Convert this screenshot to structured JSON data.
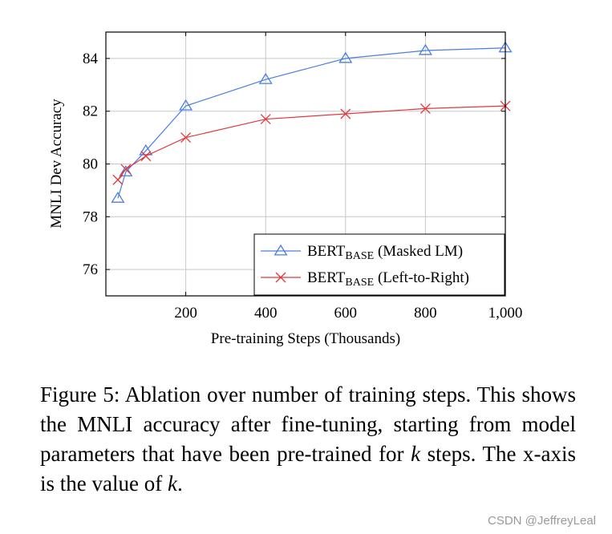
{
  "chart_data": {
    "type": "line",
    "title": "",
    "xlabel": "Pre-training Steps (Thousands)",
    "ylabel": "MNLI Dev Accuracy",
    "xlim": [
      0,
      1000
    ],
    "ylim": [
      75,
      85
    ],
    "xticks": [
      200,
      400,
      600,
      800,
      1000
    ],
    "xtick_labels": [
      "200",
      "400",
      "600",
      "800",
      "1,000"
    ],
    "yticks": [
      76,
      78,
      80,
      82,
      84
    ],
    "yticklabels": [
      "76",
      "78",
      "80",
      "82",
      "84"
    ],
    "grid": true,
    "legend_position": "bottom-right",
    "series": [
      {
        "name": "BERTBASE (Masked LM)",
        "legend_main": "BERT",
        "legend_sub": "BASE",
        "legend_rest": " (Masked LM)",
        "color": "#4a7ee0",
        "marker": "triangle",
        "x": [
          30,
          50,
          100,
          200,
          400,
          600,
          800,
          1000
        ],
        "y": [
          78.7,
          79.7,
          80.5,
          82.2,
          83.2,
          84.0,
          84.3,
          84.4
        ]
      },
      {
        "name": "BERTBASE (Left-to-Right)",
        "legend_main": "BERT",
        "legend_sub": "BASE",
        "legend_rest": " (Left-to-Right)",
        "color": "#e0383e",
        "marker": "x",
        "x": [
          30,
          50,
          100,
          200,
          400,
          600,
          800,
          1000
        ],
        "y": [
          79.4,
          79.8,
          80.3,
          81.0,
          81.7,
          81.9,
          82.1,
          82.2
        ]
      }
    ]
  },
  "caption": {
    "prefix": "Figure 5: Ablation over number of training steps. This shows the MNLI accuracy after fine-tuning, starting from model parameters that have been pre-trained for ",
    "var1": "k",
    "middle": " steps. The x-axis is the value of ",
    "var2": "k",
    "suffix": "."
  },
  "watermark": "CSDN @JeffreyLeal"
}
